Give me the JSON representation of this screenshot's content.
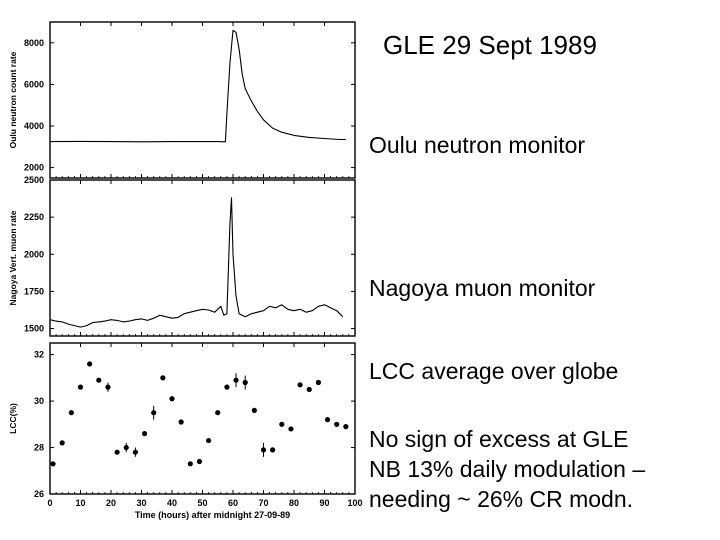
{
  "slide": {
    "title": "GLE 29 Sept 1989",
    "labels": {
      "oulu": "Oulu neutron monitor",
      "nagoya": "Nagoya muon monitor",
      "lcc": "LCC average over globe"
    },
    "notes": [
      "No sign of excess at GLE",
      "NB 13% daily modulation –",
      "needing ~ 26% CR modn."
    ]
  },
  "chart_data": [
    {
      "type": "line",
      "ylabel": "Oulu neutron count rate",
      "xlim": [
        0,
        100
      ],
      "ylim": [
        1500,
        9000
      ],
      "yticks": [
        2000,
        4000,
        6000,
        8000
      ],
      "series": [
        {
          "x": [
            0,
            10,
            20,
            30,
            40,
            50,
            55,
            57.5,
            58,
            59,
            60,
            61,
            62,
            63,
            64,
            66,
            68,
            70,
            73,
            76,
            80,
            85,
            90,
            95,
            97
          ],
          "y": [
            3250,
            3260,
            3250,
            3240,
            3250,
            3250,
            3250,
            3240,
            4600,
            7000,
            8600,
            8500,
            7700,
            6500,
            5800,
            5200,
            4700,
            4300,
            3900,
            3700,
            3550,
            3450,
            3400,
            3350,
            3350
          ]
        }
      ]
    },
    {
      "type": "line",
      "ylabel": "Nagoya Vert. muon rate",
      "xlim": [
        0,
        100
      ],
      "ylim": [
        1450,
        2500
      ],
      "yticks": [
        1500,
        1750,
        2000,
        2250,
        2500
      ],
      "series": [
        {
          "x": [
            0,
            2,
            4,
            6,
            8,
            10,
            12,
            14,
            16,
            18,
            20,
            22,
            24,
            26,
            28,
            30,
            32,
            34,
            36,
            38,
            40,
            42,
            44,
            46,
            48,
            50,
            52,
            54,
            56,
            57,
            58,
            59,
            59.5,
            60,
            61,
            62,
            64,
            66,
            68,
            70,
            72,
            74,
            76,
            78,
            80,
            82,
            84,
            86,
            88,
            90,
            92,
            94,
            96
          ],
          "y": [
            1560,
            1550,
            1545,
            1530,
            1520,
            1510,
            1520,
            1540,
            1545,
            1550,
            1560,
            1555,
            1545,
            1550,
            1560,
            1565,
            1555,
            1570,
            1590,
            1580,
            1570,
            1575,
            1600,
            1610,
            1620,
            1630,
            1625,
            1610,
            1650,
            1590,
            1600,
            2200,
            2380,
            2000,
            1720,
            1600,
            1580,
            1600,
            1610,
            1620,
            1650,
            1640,
            1660,
            1630,
            1620,
            1630,
            1610,
            1620,
            1650,
            1660,
            1640,
            1620,
            1580
          ]
        }
      ]
    },
    {
      "type": "scatter",
      "ylabel": "LCC(%)",
      "xlabel": "Time (hours) after midnight 27-09-89",
      "xlim": [
        0,
        100
      ],
      "ylim": [
        26,
        32.5
      ],
      "yticks": [
        26,
        28,
        30,
        32
      ],
      "xticks": [
        0,
        10,
        20,
        30,
        40,
        50,
        60,
        70,
        80,
        90,
        100
      ],
      "series": [
        {
          "x": [
            1,
            4,
            7,
            10,
            13,
            16,
            19,
            22,
            25,
            28,
            31,
            34,
            37,
            40,
            43,
            46,
            49,
            52,
            55,
            58,
            61,
            64,
            67,
            70,
            73,
            76,
            79,
            82,
            85,
            88,
            91,
            94,
            97
          ],
          "y": [
            27.3,
            28.2,
            29.5,
            30.6,
            31.6,
            30.9,
            30.6,
            27.8,
            28.0,
            27.8,
            28.6,
            29.5,
            31.0,
            30.1,
            29.1,
            27.3,
            27.4,
            28.3,
            29.5,
            30.6,
            30.9,
            30.8,
            29.6,
            27.9,
            27.9,
            29.0,
            28.8,
            30.7,
            30.5,
            30.8,
            29.2,
            29.0,
            28.9
          ],
          "err": [
            0.1,
            0.1,
            0.1,
            0.1,
            0.1,
            0.1,
            0.2,
            0.1,
            0.2,
            0.2,
            0.1,
            0.3,
            0.1,
            0.1,
            0.1,
            0.1,
            0.1,
            0.1,
            0.1,
            0.1,
            0.3,
            0.3,
            0.1,
            0.3,
            0.1,
            0.1,
            0.1,
            0.1,
            0.1,
            0.1,
            0.1,
            0.1,
            0.1
          ]
        }
      ]
    }
  ]
}
